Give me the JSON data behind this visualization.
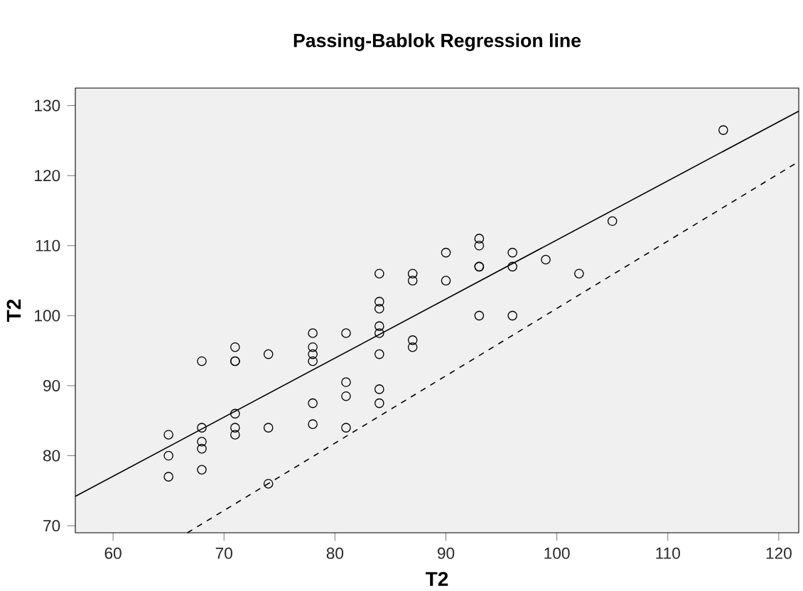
{
  "chart_data": {
    "type": "scatter",
    "title": "Passing-Bablok Regression line",
    "xlabel": "T2",
    "ylabel": "T2",
    "xlim": [
      56.6,
      121.8
    ],
    "ylim": [
      69,
      132.5
    ],
    "xticks": [
      60,
      70,
      80,
      90,
      100,
      110,
      120
    ],
    "yticks": [
      70,
      80,
      90,
      100,
      110,
      120,
      130
    ],
    "grid": false,
    "marker": "circle",
    "series": [
      {
        "color": "#000000",
        "x": [
          65,
          65,
          65,
          68,
          68,
          68,
          68,
          68,
          71,
          71,
          71,
          71,
          71,
          71,
          74,
          74,
          74,
          78,
          78,
          78,
          78,
          78,
          78,
          81,
          81,
          81,
          81,
          84,
          84,
          84,
          84,
          84,
          84,
          84,
          84,
          87,
          87,
          87,
          87,
          90,
          90,
          93,
          93,
          93,
          93,
          93,
          96,
          96,
          96,
          99,
          102,
          105,
          115
        ],
        "values": [
          83,
          80,
          77,
          93.5,
          84,
          82,
          81,
          78,
          95.5,
          93.5,
          93.5,
          86,
          84,
          83,
          94.5,
          84,
          76,
          97.5,
          95.5,
          94.5,
          93.5,
          87.5,
          84.5,
          97.5,
          90.5,
          88.5,
          84,
          106,
          102,
          101,
          98.5,
          97.5,
          94.5,
          89.5,
          87.5,
          106,
          105,
          96.5,
          95.5,
          109,
          105,
          111,
          110,
          107,
          107,
          100,
          109,
          107,
          100,
          108,
          106,
          113.5,
          126.5
        ]
      },
      {
        "type": "line",
        "color": "#000000",
        "line_style": "solid",
        "marker": "none",
        "x": [
          56.6,
          121.8
        ],
        "values": [
          74.2,
          129.2
        ]
      },
      {
        "type": "line",
        "color": "#000000",
        "line_style": "dashed",
        "marker": "none",
        "x": [
          66.7,
          121.8
        ],
        "values": [
          69,
          122
        ]
      }
    ]
  }
}
